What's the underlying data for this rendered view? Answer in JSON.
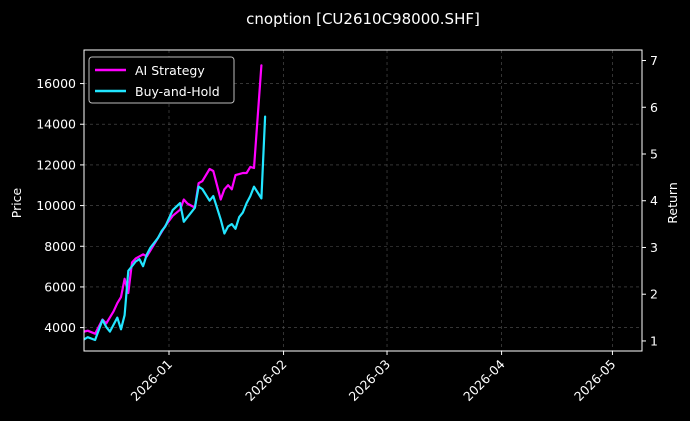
{
  "chart_data": {
    "type": "line",
    "title": "cnoption [CU2610C98000.SHF]",
    "ylabel": "Price",
    "y2label": "Return",
    "ylim": [
      2850,
      17650
    ],
    "y2lim": [
      0.785,
      7.225
    ],
    "xlim": [
      "2025-12-09",
      "2026-05-09"
    ],
    "yticks": [
      4000,
      6000,
      8000,
      10000,
      12000,
      14000,
      16000
    ],
    "y2ticks": [
      1,
      2,
      3,
      4,
      5,
      6,
      7
    ],
    "xticks": [
      "2026-01-01",
      "2026-02-01",
      "2026-03-01",
      "2026-04-01",
      "2026-05-01"
    ],
    "xtick_labels": [
      "2026-01",
      "2026-02",
      "2026-03",
      "2026-04",
      "2026-05"
    ],
    "grid": true,
    "legend_position": "top-left",
    "colors": {
      "background": "#000000",
      "strategy": "#ff00ff",
      "buy_hold": "#22e5ff",
      "grid": "#555555",
      "text": "#ffffff"
    },
    "series": [
      {
        "name": "AI Strategy",
        "axis": "price",
        "color": "#ff00ff",
        "x": [
          "2025-12-09",
          "2025-12-10",
          "2025-12-12",
          "2025-12-14",
          "2025-12-15",
          "2025-12-16",
          "2025-12-17",
          "2025-12-18",
          "2025-12-19",
          "2025-12-20",
          "2025-12-21",
          "2025-12-22",
          "2025-12-23",
          "2025-12-24",
          "2025-12-25",
          "2025-12-26",
          "2025-12-27",
          "2025-12-28",
          "2025-12-29",
          "2025-12-30",
          "2025-12-31",
          "2026-01-02",
          "2026-01-04",
          "2026-01-05",
          "2026-01-06",
          "2026-01-07",
          "2026-01-08",
          "2026-01-09",
          "2026-01-10",
          "2026-01-12",
          "2026-01-13",
          "2026-01-14",
          "2026-01-15",
          "2026-01-16",
          "2026-01-17",
          "2026-01-18",
          "2026-01-19",
          "2026-01-20",
          "2026-01-21",
          "2026-01-22",
          "2026-01-23",
          "2026-01-24",
          "2026-01-26",
          "2026-01-27",
          "2026-01-28",
          "2026-01-29",
          "2026-01-30"
        ],
        "values": [
          3800,
          3850,
          3700,
          4400,
          4200,
          4500,
          4800,
          5200,
          5500,
          6400,
          5700,
          7200,
          7400,
          7500,
          7600,
          7500,
          7800,
          8100,
          8400,
          8700,
          9000,
          9500,
          9800,
          10300,
          10100,
          10000,
          9900,
          11100,
          11200,
          11800,
          11700,
          11000,
          10300,
          10800,
          11000,
          10800,
          11500,
          11550,
          11600,
          11600,
          11900,
          11850,
          16900,
          null,
          null,
          null,
          null
        ]
      },
      {
        "name": "Buy-and-Hold",
        "axis": "return",
        "color": "#22e5ff",
        "x": [
          "2025-12-09",
          "2025-12-10",
          "2025-12-12",
          "2025-12-14",
          "2025-12-15",
          "2025-12-16",
          "2025-12-17",
          "2025-12-18",
          "2025-12-19",
          "2025-12-20",
          "2025-12-21",
          "2025-12-22",
          "2025-12-23",
          "2025-12-24",
          "2025-12-25",
          "2025-12-26",
          "2025-12-27",
          "2025-12-28",
          "2025-12-29",
          "2025-12-30",
          "2025-12-31",
          "2026-01-02",
          "2026-01-04",
          "2026-01-05",
          "2026-01-06",
          "2026-01-07",
          "2026-01-08",
          "2026-01-09",
          "2026-01-10",
          "2026-01-12",
          "2026-01-13",
          "2026-01-14",
          "2026-01-15",
          "2026-01-16",
          "2026-01-17",
          "2026-01-18",
          "2026-01-19",
          "2026-01-20",
          "2026-01-21",
          "2026-01-22",
          "2026-01-23",
          "2026-01-24",
          "2026-01-26",
          "2026-01-27",
          "2026-01-28",
          "2026-01-29",
          "2026-01-30"
        ],
        "values": [
          1.03,
          1.08,
          1.02,
          1.45,
          1.3,
          1.2,
          1.35,
          1.5,
          1.25,
          1.55,
          2.5,
          2.6,
          2.7,
          2.75,
          2.6,
          2.85,
          3.0,
          3.1,
          3.2,
          3.35,
          3.45,
          3.8,
          3.95,
          3.55,
          3.65,
          3.75,
          3.85,
          4.3,
          4.25,
          4.0,
          4.1,
          3.85,
          3.6,
          3.3,
          3.45,
          3.5,
          3.4,
          3.65,
          3.75,
          3.95,
          4.1,
          4.3,
          4.05,
          5.8,
          null,
          null,
          null
        ]
      }
    ]
  }
}
